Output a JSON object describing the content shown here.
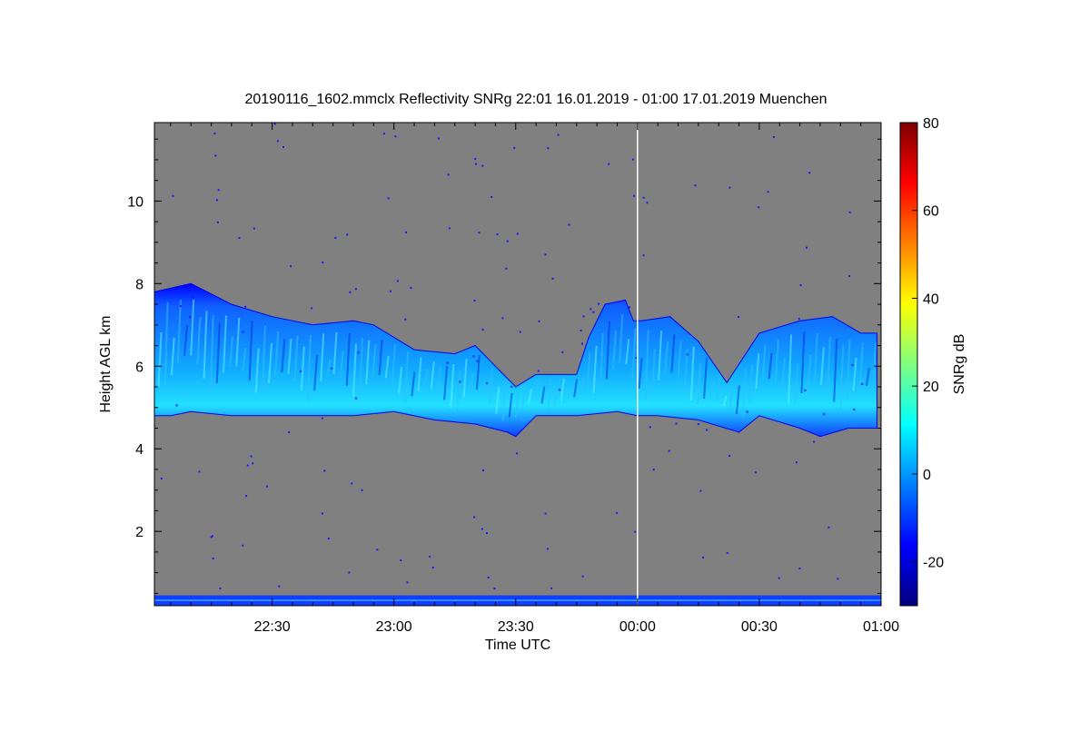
{
  "chart_data": {
    "type": "heatmap",
    "title": "20190116_1602.mmclx Reflectivity SNRg   22:01 16.01.2019 - 01:00 17.01.2019 Muenchen",
    "xlabel": "Time UTC",
    "ylabel": "Height AGL km",
    "colorbar_label": "SNRg dB",
    "x_range": [
      "22:01",
      "01:00"
    ],
    "ylim": [
      0.2,
      11.9
    ],
    "x_ticks": [
      "22:30",
      "23:00",
      "23:30",
      "00:00",
      "00:30",
      "01:00"
    ],
    "y_ticks": [
      "2",
      "4",
      "6",
      "8",
      "10"
    ],
    "colorbar_range": [
      -30,
      80
    ],
    "colorbar_ticks": [
      "-20",
      "0",
      "20",
      "40",
      "60",
      "80"
    ],
    "background_color": "#808080",
    "colormap": [
      "#00007f",
      "#0000ff",
      "#007fff",
      "#00ffff",
      "#7fff7f",
      "#ffff00",
      "#ff7f00",
      "#ff0000",
      "#7f0000"
    ],
    "cloud_layer": {
      "description_units": "minutes since 22:00 vs km",
      "base_km": [
        [
          1,
          4.8
        ],
        [
          5,
          4.8
        ],
        [
          10,
          4.9
        ],
        [
          20,
          4.8
        ],
        [
          35,
          4.8
        ],
        [
          50,
          4.8
        ],
        [
          60,
          4.9
        ],
        [
          70,
          4.7
        ],
        [
          80,
          4.6
        ],
        [
          88,
          4.4
        ],
        [
          90,
          4.3
        ],
        [
          95,
          4.8
        ],
        [
          105,
          4.8
        ],
        [
          115,
          4.9
        ],
        [
          120,
          4.8
        ],
        [
          125,
          4.8
        ],
        [
          135,
          4.7
        ],
        [
          145,
          4.4
        ],
        [
          150,
          4.8
        ],
        [
          160,
          4.5
        ],
        [
          165,
          4.3
        ],
        [
          172,
          4.5
        ],
        [
          179,
          4.5
        ]
      ],
      "top_km": [
        [
          1,
          7.8
        ],
        [
          10,
          8.0
        ],
        [
          20,
          7.5
        ],
        [
          30,
          7.2
        ],
        [
          40,
          7.0
        ],
        [
          50,
          7.1
        ],
        [
          55,
          7.0
        ],
        [
          65,
          6.4
        ],
        [
          75,
          6.3
        ],
        [
          80,
          6.5
        ],
        [
          85,
          6.0
        ],
        [
          90,
          5.5
        ],
        [
          95,
          5.8
        ],
        [
          105,
          5.8
        ],
        [
          108,
          6.7
        ],
        [
          112,
          7.5
        ],
        [
          117,
          7.6
        ],
        [
          119,
          7.1
        ],
        [
          121,
          7.1
        ],
        [
          128,
          7.2
        ],
        [
          135,
          6.6
        ],
        [
          142,
          5.6
        ],
        [
          150,
          6.8
        ],
        [
          160,
          7.1
        ],
        [
          168,
          7.2
        ],
        [
          175,
          6.8
        ],
        [
          179,
          6.8
        ]
      ]
    },
    "ground_clutter_km": [
      0.2,
      0.45
    ],
    "vertical_marker": "00:00"
  }
}
